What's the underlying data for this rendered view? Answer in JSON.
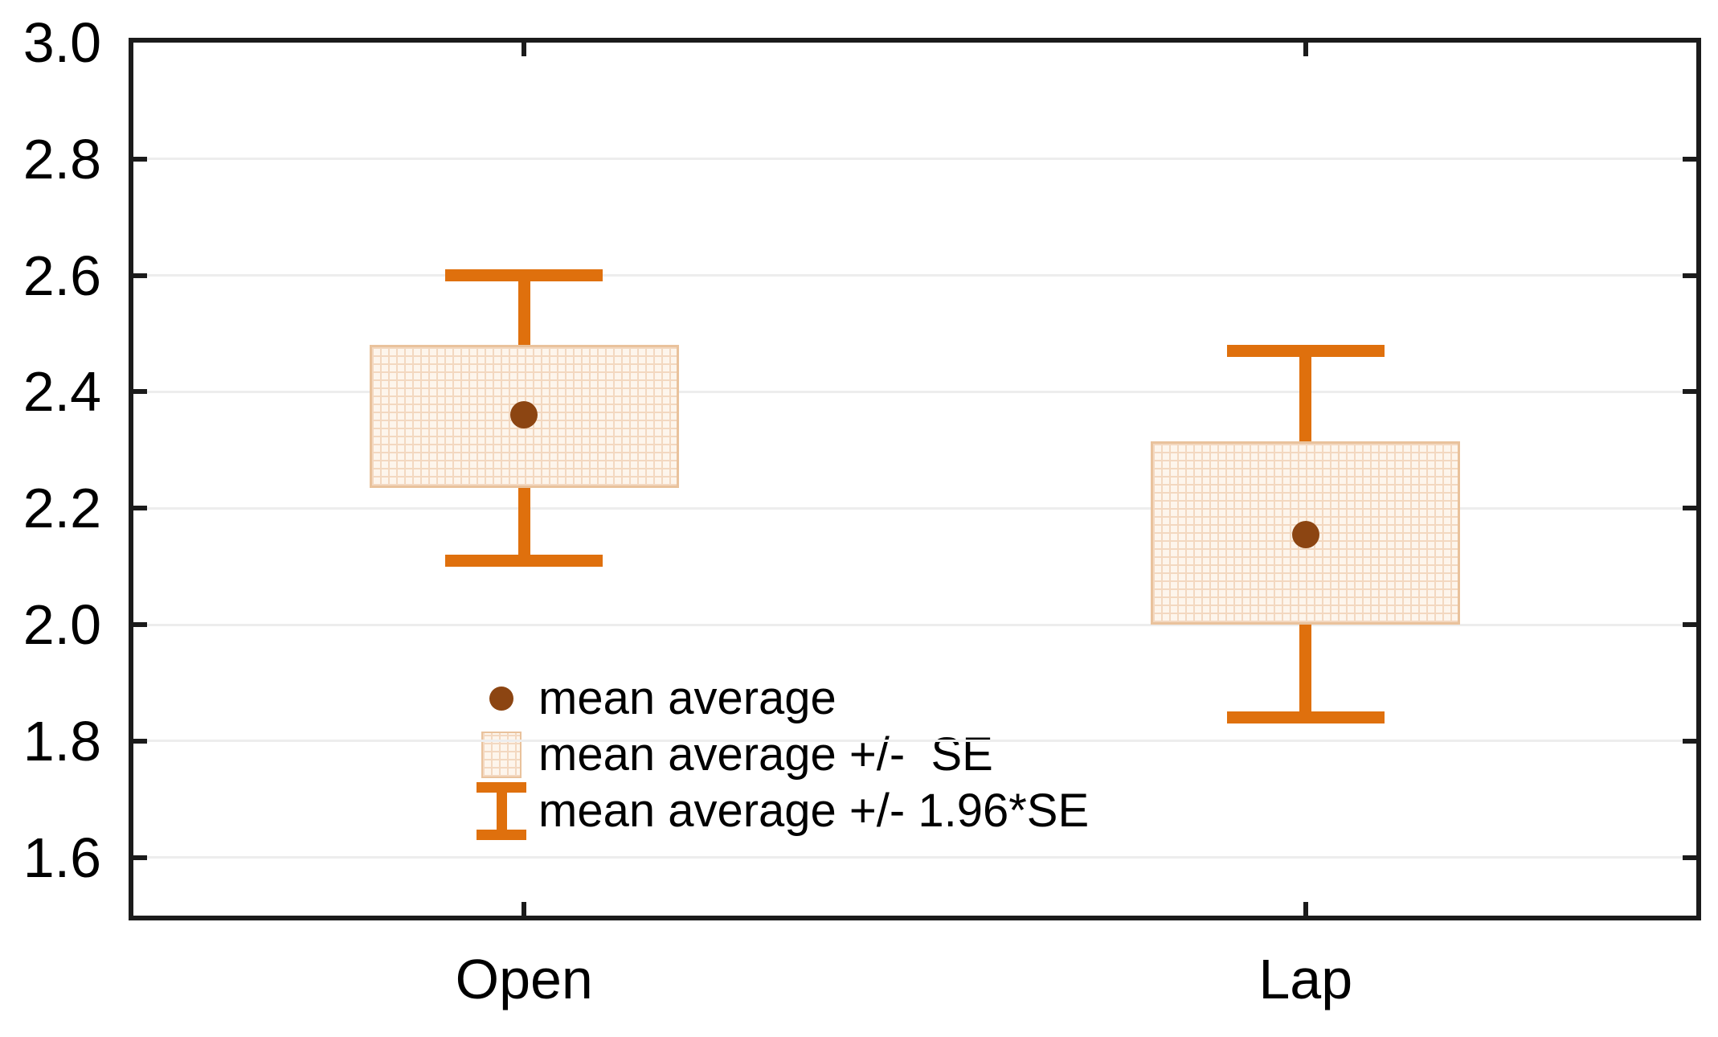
{
  "chart_data": {
    "type": "box",
    "subtype": "mean-se-whisker",
    "title": "",
    "xlabel": "",
    "ylabel": "",
    "categories": [
      "Open",
      "Lap"
    ],
    "series": [
      {
        "category": "Open",
        "mean": 2.36,
        "box_low": 2.235,
        "box_high": 2.48,
        "whisker_low": 2.11,
        "whisker_high": 2.6
      },
      {
        "category": "Lap",
        "mean": 2.155,
        "box_low": 2.0,
        "box_high": 2.315,
        "whisker_low": 1.84,
        "whisker_high": 2.47
      }
    ],
    "y_axis": {
      "min": 1.5,
      "max": 3.0,
      "tick_labels": [
        "3.0",
        "2.8",
        "2.6",
        "2.4",
        "2.2",
        "2.0",
        "1.8",
        "1.6"
      ],
      "tick_values": [
        3.0,
        2.8,
        2.6,
        2.4,
        2.2,
        2.0,
        1.8,
        1.6
      ]
    },
    "grid": true,
    "legend": {
      "position": "inside-bottom-left",
      "items": [
        {
          "marker": "mean-dot",
          "label": "mean average"
        },
        {
          "marker": "se-box",
          "label": "mean average +/-  SE"
        },
        {
          "marker": "whisker-beam",
          "label": "mean average +/- 1.96*SE"
        }
      ]
    },
    "colors": {
      "whisker_orange": "#df700d",
      "mean_dot_brown": "#8c4512",
      "box_fill": "#fdf5ec",
      "box_hatch": "#f3d8c0",
      "box_border": "#e9c29c",
      "gridline": "#ededed",
      "axis_frame": "#1b1b1b",
      "text": "#000000"
    }
  }
}
